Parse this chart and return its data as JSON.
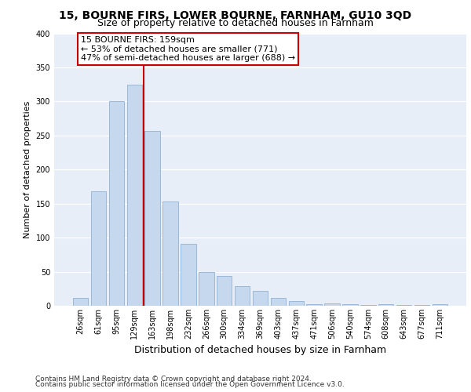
{
  "title1": "15, BOURNE FIRS, LOWER BOURNE, FARNHAM, GU10 3QD",
  "title2": "Size of property relative to detached houses in Farnham",
  "xlabel": "Distribution of detached houses by size in Farnham",
  "ylabel": "Number of detached properties",
  "categories": [
    "26sqm",
    "61sqm",
    "95sqm",
    "129sqm",
    "163sqm",
    "198sqm",
    "232sqm",
    "266sqm",
    "300sqm",
    "334sqm",
    "369sqm",
    "403sqm",
    "437sqm",
    "471sqm",
    "506sqm",
    "540sqm",
    "574sqm",
    "608sqm",
    "643sqm",
    "677sqm",
    "711sqm"
  ],
  "values": [
    12,
    168,
    300,
    325,
    257,
    153,
    91,
    50,
    44,
    29,
    22,
    11,
    7,
    2,
    3,
    2,
    1,
    2,
    1,
    1,
    2
  ],
  "bar_color": "#c5d8ed",
  "bar_edge_color": "#9ab8d8",
  "bg_color": "#e8eef8",
  "grid_color": "#ffffff",
  "annotation_text_line1": "15 BOURNE FIRS: 159sqm",
  "annotation_text_line2": "← 53% of detached houses are smaller (771)",
  "annotation_text_line3": "47% of semi-detached houses are larger (688) →",
  "annotation_box_color": "#ffffff",
  "annotation_border_color": "#cc0000",
  "vline_color": "#cc0000",
  "vline_x_index": 4,
  "ylim": [
    0,
    400
  ],
  "yticks": [
    0,
    50,
    100,
    150,
    200,
    250,
    300,
    350,
    400
  ],
  "footer1": "Contains HM Land Registry data © Crown copyright and database right 2024.",
  "footer2": "Contains public sector information licensed under the Open Government Licence v3.0.",
  "title1_fontsize": 10,
  "title2_fontsize": 9,
  "xlabel_fontsize": 9,
  "ylabel_fontsize": 8,
  "tick_fontsize": 7,
  "annotation_fontsize": 8,
  "footer_fontsize": 6.5,
  "bar_width": 0.85
}
